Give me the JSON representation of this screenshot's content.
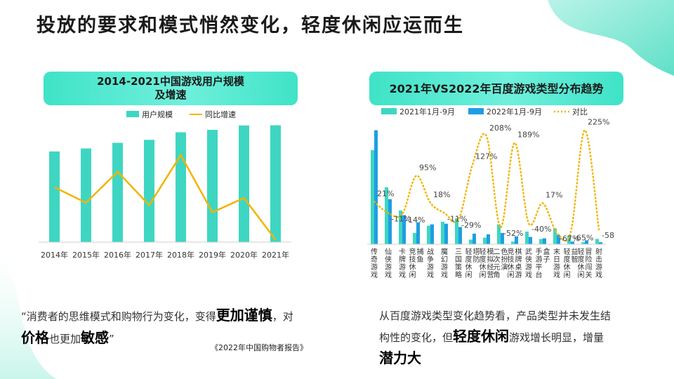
{
  "title": "投放的要求和模式悄然变化，轻度休闲应运而生",
  "colors": {
    "teal": "#3ed6c2",
    "blue": "#1f9ee3",
    "orange": "#f2b400",
    "header": "#4fe6cf",
    "text": "#333333"
  },
  "left_chart": {
    "title_line1": "2014-2021中国游戏用户规模",
    "title_line2": "及增速"
  },
  "right_chart": {
    "title": "2021年VS2022年百度游戏类型分布趋势"
  },
  "chart_data": [
    {
      "type": "bar",
      "title": "2014-2021中国游戏用户规模及增速",
      "categories": [
        "2014年",
        "2015年",
        "2016年",
        "2017年",
        "2018年",
        "2019年",
        "2020年",
        "2021年"
      ],
      "series": [
        {
          "name": "用户规模",
          "kind": "bar",
          "values": [
            5.17,
            5.34,
            5.66,
            5.83,
            6.26,
            6.4,
            6.65,
            6.66
          ]
        },
        {
          "name": "同比增速",
          "kind": "line",
          "values": [
            4.6,
            3.3,
            5.9,
            3.1,
            7.3,
            2.5,
            3.7,
            0.2
          ]
        }
      ],
      "ylim": [
        0,
        6.8
      ],
      "y2lim": [
        0,
        10
      ],
      "grid": false,
      "legend": "top"
    },
    {
      "type": "bar",
      "title": "2021年VS2022年百度游戏类型分布趋势",
      "categories": [
        "传奇游戏",
        "仙侠游戏",
        "卡牌游戏",
        "竞技休闲捕鱼",
        "战争游戏",
        "魔幻游戏",
        "三国策略",
        "轻度休闲塔防",
        "轻度休闲模拟经营",
        "二次元角色扮演",
        "竞技休闲棋牌桌游",
        "武侠游戏",
        "手游平台盒子",
        "末日游戏",
        "轻度休闲益智",
        "轻度休闲冒险闯关",
        "射击游戏"
      ],
      "category_labels_split": [
        [
          "传奇游戏"
        ],
        [
          "仙侠游戏"
        ],
        [
          "卡牌游戏"
        ],
        [
          "竞技休闲",
          "捕鱼"
        ],
        [
          "战争游戏"
        ],
        [
          "魔幻游戏"
        ],
        [
          "三国策略"
        ],
        [
          "轻度休闲",
          "塔防"
        ],
        [
          "轻度休闲",
          "模拟经营"
        ],
        [
          "二次元角",
          "色扮演"
        ],
        [
          "竞技休闲",
          "棋牌桌游"
        ],
        [
          "武侠游戏"
        ],
        [
          "手游平台",
          "盒子"
        ],
        [
          "末日游戏"
        ],
        [
          "轻度休闲",
          "益智"
        ],
        [
          "轻度休闲",
          "冒险闯关"
        ],
        [
          "射击游戏"
        ]
      ],
      "series": [
        {
          "name": "2021年1月-9月",
          "kind": "bar",
          "values": [
            14.2,
            8.6,
            5.1,
            1.7,
            2.8,
            3.4,
            3.9,
            0.7,
            1.0,
            3.0,
            0.4,
            1.9,
            0.8,
            2.4,
            1.3,
            0.3,
            0.8
          ]
        },
        {
          "name": "2022年1月-9月",
          "kind": "bar",
          "values": [
            17.2,
            6.8,
            4.4,
            3.3,
            3.0,
            3.1,
            2.6,
            1.6,
            1.5,
            1.7,
            1.2,
            1.1,
            0.9,
            1.4,
            0.4,
            0.6,
            0.3
          ]
        },
        {
          "name": "对比",
          "kind": "line",
          "values": [
            21,
            -11,
            -14,
            95,
            18,
            -11,
            -29,
            127,
            208,
            -52,
            189,
            -40,
            17,
            -67,
            -65,
            225,
            -58
          ]
        }
      ],
      "point_labels": [
        "21%",
        "-11%",
        "-14%",
        "95%",
        "18%",
        "-11%",
        "-29%",
        "127%",
        "208%",
        "-52%",
        "189%",
        "-40%",
        "17%",
        "-67%",
        "-65%",
        "225%",
        "-58%"
      ],
      "ylim": [
        0,
        18
      ],
      "y2lim": [
        -100,
        240
      ],
      "grid": false,
      "legend": "top"
    }
  ],
  "quote": {
    "open": "“消费者的思维模式和购物行为变化，变得",
    "bold1": "更加谨慎",
    "mid": "，对",
    "bold2": "价格",
    "mid2": "也更加",
    "bold3": "敏感",
    "close": "”",
    "source": "《2022年中国购物者报告》"
  },
  "summary": {
    "p1": "从百度游戏类型变化趋势看，产品类型并未发生结构性的变化，但",
    "bold1": "轻度休闲",
    "p2": "游戏增长明显，增量",
    "bold2": "潜力大"
  }
}
